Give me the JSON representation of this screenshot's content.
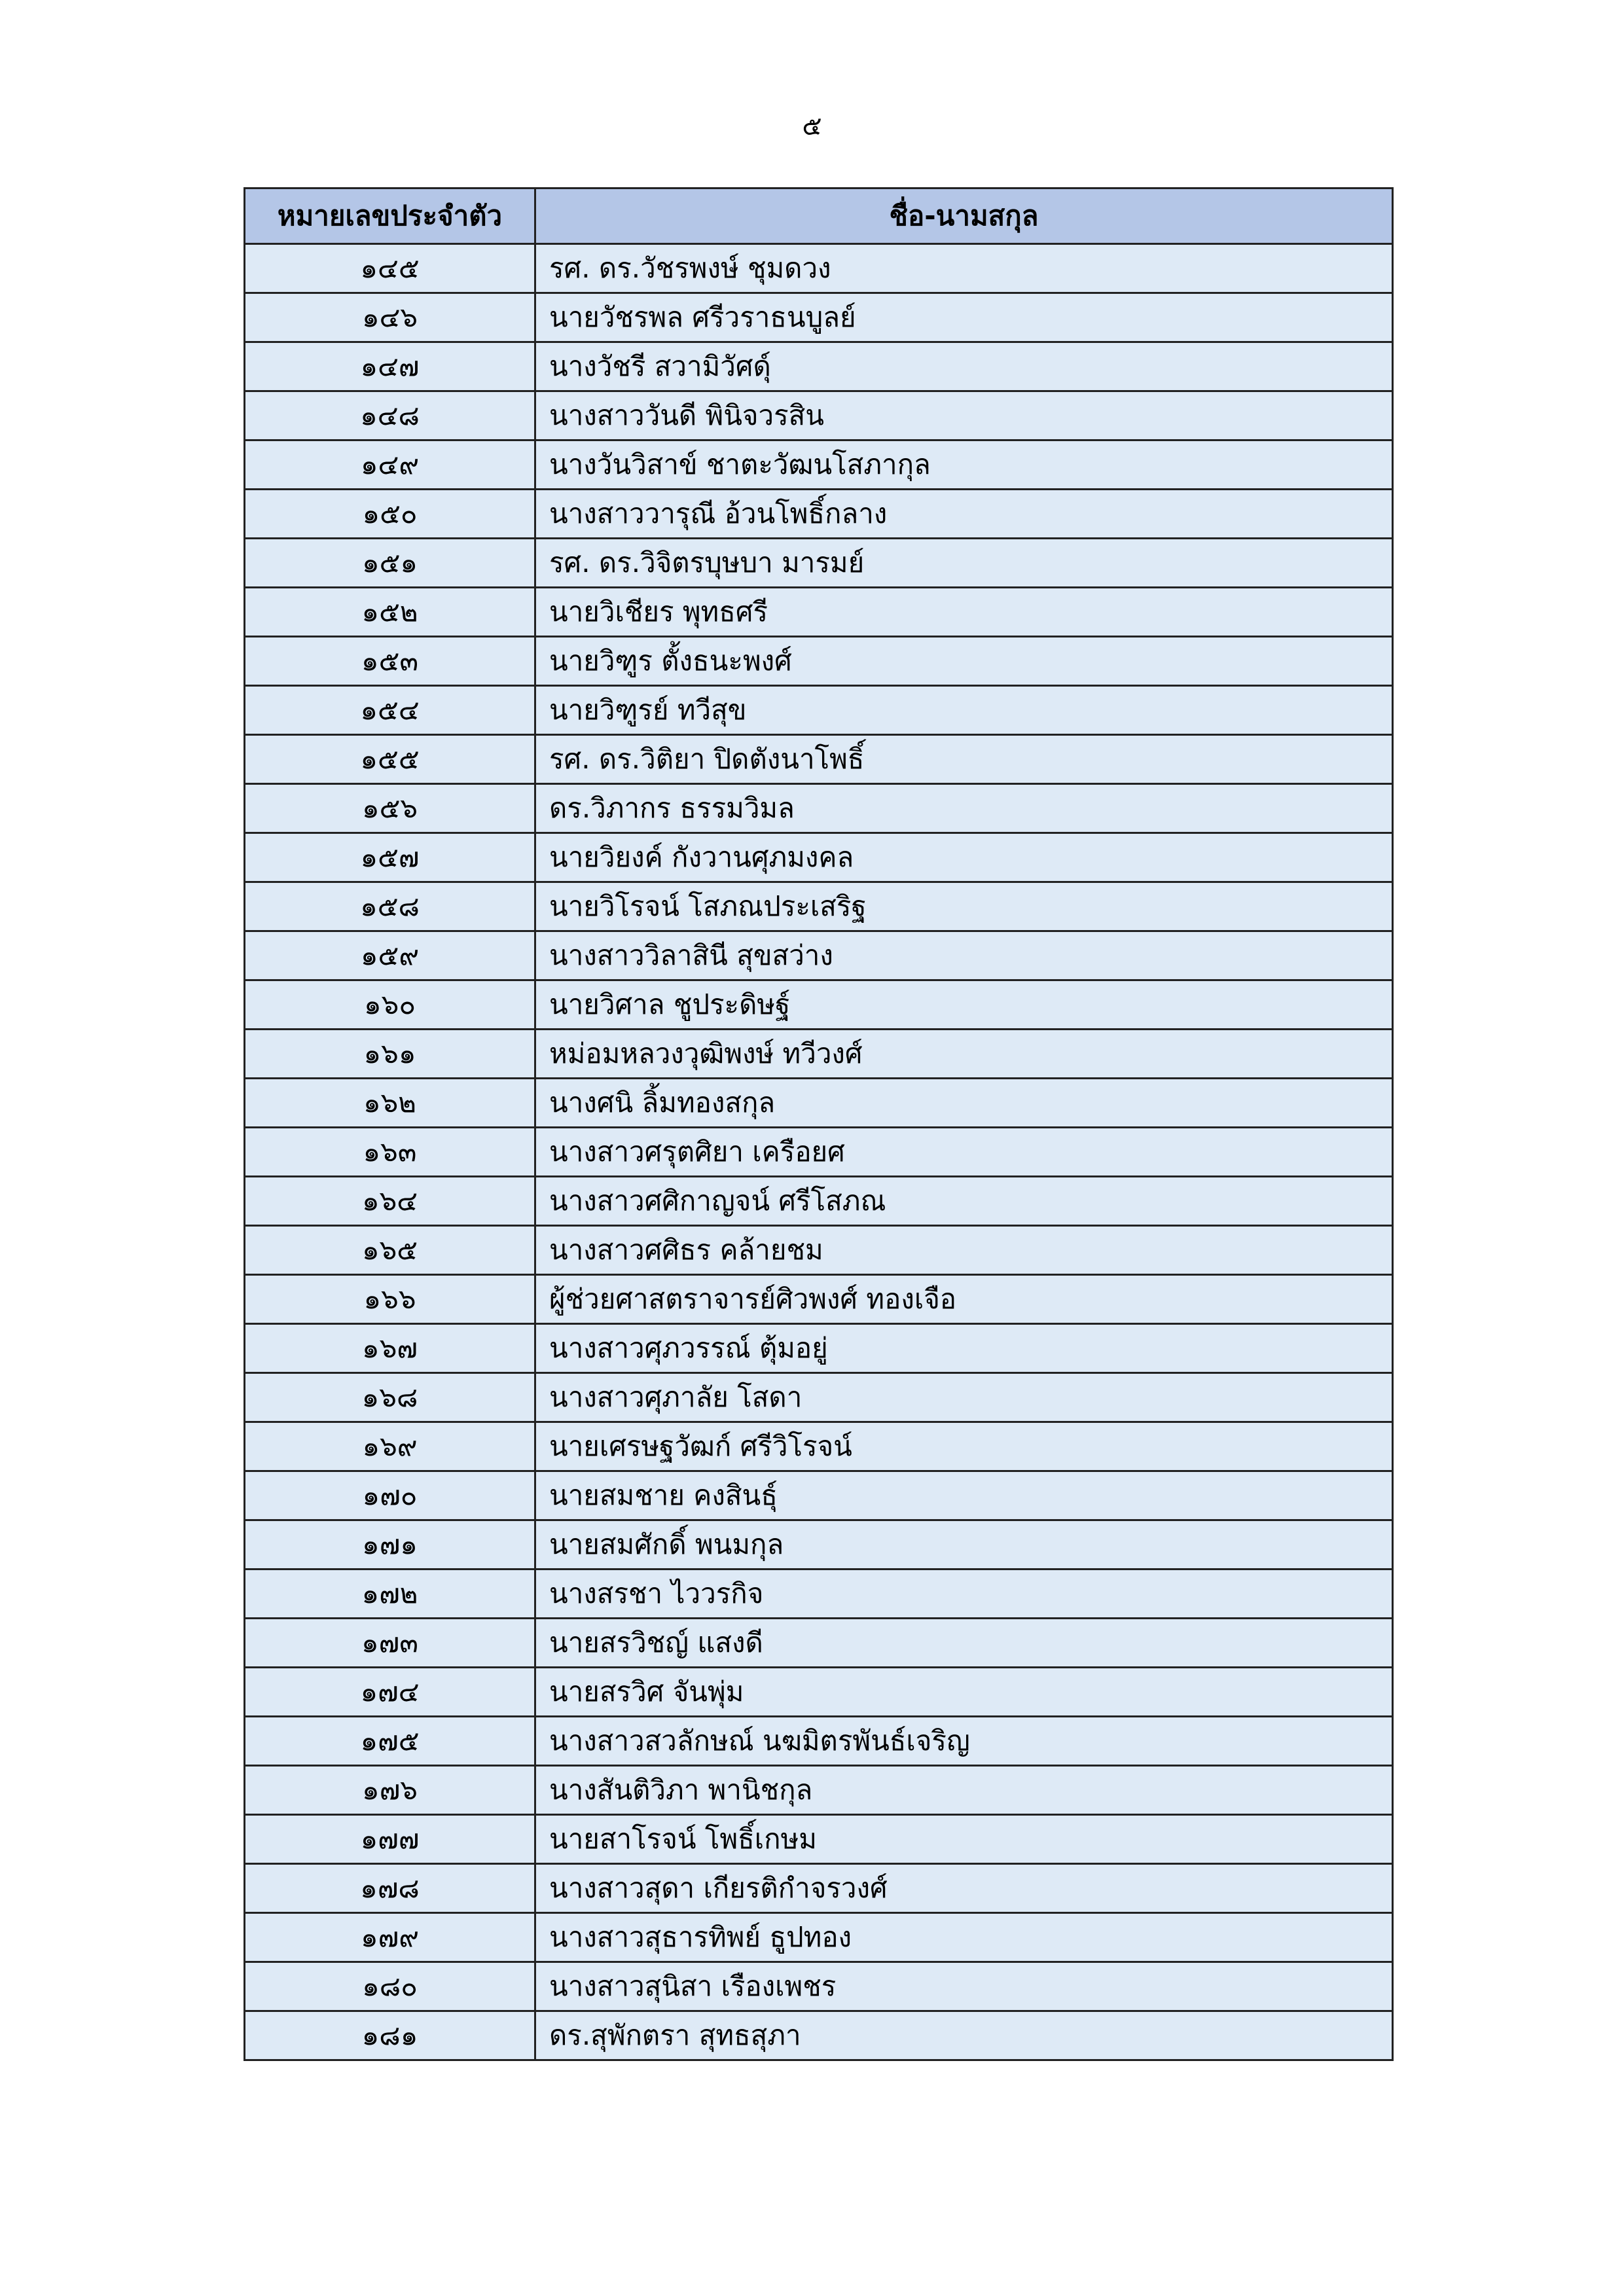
{
  "page_number": "๕",
  "table": {
    "headers": [
      "หมายเลขประจำตัว",
      "ชื่อ-นามสกุล"
    ],
    "header_color": "#b4c6e7",
    "row_color": "#deeaf6",
    "rows": [
      {
        "id": "๑๔๕",
        "name": "รศ. ดร.วัชรพงษ์ ชุมดวง"
      },
      {
        "id": "๑๔๖",
        "name": "นายวัชรพล ศรีวราธนบูลย์"
      },
      {
        "id": "๑๔๗",
        "name": "นางวัชรี สวามิวัศดุ์"
      },
      {
        "id": "๑๔๘",
        "name": "นางสาววันดี พินิจวรสิน"
      },
      {
        "id": "๑๔๙",
        "name": "นางวันวิสาข์  ชาตะวัฒนโสภากุล"
      },
      {
        "id": "๑๕๐",
        "name": "นางสาววารุณี อ้วนโพธิ์กลาง"
      },
      {
        "id": "๑๕๑",
        "name": "รศ. ดร.วิจิตรบุษบา  มารมย์"
      },
      {
        "id": "๑๕๒",
        "name": "นายวิเชียร พุทธศรี"
      },
      {
        "id": "๑๕๓",
        "name": "นายวิฑูร ตั้งธนะพงศ์"
      },
      {
        "id": "๑๕๔",
        "name": "นายวิฑูรย์ ทวีสุข"
      },
      {
        "id": "๑๕๕",
        "name": "รศ. ดร.วิติยา  ปิดตังนาโพธิ์"
      },
      {
        "id": "๑๕๖",
        "name": "ดร.วิภากร  ธรรมวิมล"
      },
      {
        "id": "๑๕๗",
        "name": "นายวิยงค์ กังวานศุภมงคล"
      },
      {
        "id": "๑๕๘",
        "name": "นายวิโรจน์ โสภณประเสริฐ"
      },
      {
        "id": "๑๕๙",
        "name": "นางสาววิลาสินี สุขสว่าง"
      },
      {
        "id": "๑๖๐",
        "name": "นายวิศาล ชูประดิษฐ์"
      },
      {
        "id": "๑๖๑",
        "name": "หม่อมหลวงวุฒิพงษ์ ทวีวงศ์"
      },
      {
        "id": "๑๖๒",
        "name": "นางศนิ  ลิ้มทองสกุล"
      },
      {
        "id": "๑๖๓",
        "name": "นางสาวศรุตศิยา เครือยศ"
      },
      {
        "id": "๑๖๔",
        "name": "นางสาวศศิกาญจน์ ศรีโสภณ"
      },
      {
        "id": "๑๖๕",
        "name": "นางสาวศศิธร คล้ายชม"
      },
      {
        "id": "๑๖๖",
        "name": "ผู้ช่วยศาสตราจารย์ศิวพงศ์ ทองเจือ"
      },
      {
        "id": "๑๖๗",
        "name": "นางสาวศุภวรรณ์ ตุ้มอยู่"
      },
      {
        "id": "๑๖๘",
        "name": "นางสาวศุภาลัย  โสดา"
      },
      {
        "id": "๑๖๙",
        "name": "นายเศรษฐวัฒก์ ศรีวิโรจน์"
      },
      {
        "id": "๑๗๐",
        "name": "นายสมชาย คงสินธุ์"
      },
      {
        "id": "๑๗๑",
        "name": "นายสมศักดิ์ พนมกุล"
      },
      {
        "id": "๑๗๒",
        "name": "นางสรชา ไววรกิจ"
      },
      {
        "id": "๑๗๓",
        "name": "นายสรวิชญ์ แสงดี"
      },
      {
        "id": "๑๗๔",
        "name": "นายสรวิศ  จันพุ่ม"
      },
      {
        "id": "๑๗๕",
        "name": "นางสาวสวลักษณ์ นฆมิตรพันธ์เจริญ"
      },
      {
        "id": "๑๗๖",
        "name": "นางสันติวิภา พานิชกุล"
      },
      {
        "id": "๑๗๗",
        "name": "นายสาโรจน์ โพธิ์เกษม"
      },
      {
        "id": "๑๗๘",
        "name": "นางสาวสุดา เกียรติกำจรวงศ์"
      },
      {
        "id": "๑๗๙",
        "name": "นางสาวสุธารทิพย์ ธูปทอง"
      },
      {
        "id": "๑๘๐",
        "name": "นางสาวสุนิสา เรืองเพชร"
      },
      {
        "id": "๑๘๑",
        "name": "ดร.สุพักตรา สุทธสุภา"
      }
    ]
  }
}
